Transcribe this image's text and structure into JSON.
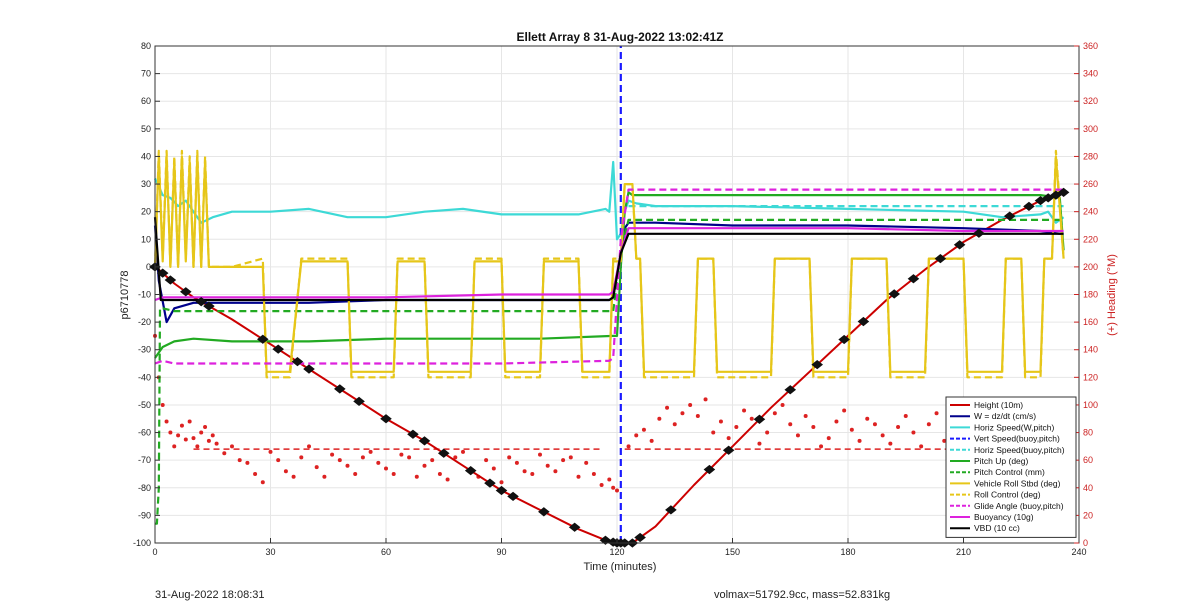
{
  "chart_data": {
    "type": "line",
    "title": "Ellett Array 8 31-Aug-2022 13:02:41Z",
    "xlabel": "Time (minutes)",
    "ylabel": "p6710778",
    "y2label": "(+) Heading (°M)",
    "xlim": [
      0,
      240
    ],
    "ylim": [
      -100,
      80
    ],
    "y2lim": [
      0,
      360
    ],
    "xticks": [
      0,
      30,
      60,
      90,
      120,
      150,
      180,
      210,
      240
    ],
    "yticks": [
      -100,
      -90,
      -80,
      -70,
      -60,
      -50,
      -40,
      -30,
      -20,
      -10,
      0,
      10,
      20,
      30,
      40,
      50,
      60,
      70,
      80
    ],
    "y2ticks": [
      0,
      20,
      40,
      60,
      80,
      100,
      120,
      140,
      160,
      180,
      200,
      220,
      240,
      260,
      280,
      300,
      320,
      340,
      360
    ],
    "grid": true,
    "legend_position": "bottom-right",
    "apogee_marker_x": 121,
    "series": [
      {
        "name": "Height (10m)",
        "color": "#cc0000",
        "style": "solid",
        "x": [
          0,
          1,
          5,
          10,
          20,
          30,
          40,
          50,
          60,
          70,
          80,
          90,
          100,
          110,
          117,
          120,
          122,
          124,
          130,
          140,
          150,
          160,
          170,
          180,
          190,
          200,
          210,
          220,
          230,
          236
        ],
        "y": [
          0,
          -1,
          -6,
          -11,
          -19,
          -28,
          -37,
          -46,
          -55,
          -63,
          -72,
          -81,
          -88,
          -95,
          -99,
          -100,
          -100,
          -100,
          -94,
          -79,
          -65,
          -51,
          -38,
          -25,
          -12,
          -1,
          9,
          17,
          24,
          27
        ]
      },
      {
        "name": "W = dz/dt (cm/s)",
        "color": "#00008b",
        "style": "solid",
        "x": [
          0,
          1,
          3,
          5,
          10,
          20,
          40,
          60,
          80,
          100,
          118,
          119,
          121,
          122,
          123,
          125,
          130,
          150,
          180,
          210,
          230,
          235,
          236
        ],
        "y": [
          15,
          -5,
          -20,
          -15,
          -13,
          -13,
          -13,
          -12,
          -12,
          -12,
          -12,
          -11,
          5,
          14,
          16,
          16,
          16,
          15,
          15,
          14,
          13,
          12,
          12
        ]
      },
      {
        "name": "Horiz Speed(W,pitch)",
        "color": "#3dd9d6",
        "style": "solid",
        "x": [
          0,
          2,
          4,
          6,
          8,
          10,
          12,
          15,
          20,
          30,
          40,
          50,
          60,
          70,
          80,
          90,
          100,
          110,
          117,
          118,
          119,
          120,
          121,
          122,
          123,
          125,
          130,
          150,
          180,
          210,
          220,
          230,
          232,
          234,
          236
        ],
        "y": [
          32,
          26,
          25,
          22,
          24,
          20,
          16,
          18,
          20,
          20,
          21,
          18,
          18,
          20,
          21,
          19,
          19,
          19,
          21,
          20,
          38,
          10,
          12,
          20,
          24,
          23,
          22,
          22,
          21,
          20,
          18,
          19,
          20,
          16,
          18
        ]
      },
      {
        "name": "Vert Speed(buoy,pitch)",
        "color": "#1a1aff",
        "style": "dashed",
        "x": [
          121,
          121
        ],
        "y": [
          -100,
          80
        ]
      },
      {
        "name": "Horiz Speed(buoy,pitch)",
        "color": "#3dd9d6",
        "style": "dashed",
        "x": [
          123,
          236
        ],
        "y": [
          22,
          22
        ]
      },
      {
        "name": "Pitch Up (deg)",
        "color": "#22aa22",
        "style": "solid",
        "x": [
          0,
          2,
          5,
          10,
          20,
          40,
          60,
          80,
          100,
          119,
          120,
          121,
          122,
          123,
          124,
          130,
          150,
          180,
          210,
          230,
          235,
          236
        ],
        "y": [
          -33,
          -29,
          -27,
          -26,
          -27,
          -27,
          -26,
          -26,
          -26,
          -25,
          -25,
          0,
          20,
          27,
          26,
          26,
          26,
          26,
          26,
          26,
          25,
          6
        ]
      },
      {
        "name": "Pitch Control (mm)",
        "color": "#22aa22",
        "style": "dashed",
        "x": [
          0,
          0.5,
          1,
          1.3,
          2,
          5,
          20,
          60,
          100,
          119,
          121,
          123,
          125,
          180,
          236
        ],
        "y": [
          -93,
          -93,
          -80,
          -15,
          -15,
          -16,
          -16,
          -16,
          -16,
          -16,
          5,
          17,
          17,
          17,
          17
        ]
      },
      {
        "name": "Vehicle Roll Stbd (deg)",
        "color": "#e6c619",
        "style": "solid",
        "x": [
          0,
          1,
          2,
          3,
          4,
          5,
          6,
          7,
          8,
          9,
          10,
          11,
          12,
          13,
          14,
          20,
          28,
          29,
          35,
          38,
          39,
          50,
          51,
          62,
          63,
          70,
          71,
          82,
          83,
          90,
          91,
          100,
          101,
          110,
          111,
          118,
          119,
          121,
          122,
          124,
          125,
          126,
          127,
          140,
          141,
          145,
          146,
          160,
          161,
          170,
          171,
          180,
          181,
          190,
          191,
          200,
          201,
          210,
          211,
          220,
          221,
          225,
          226,
          230,
          231,
          233,
          234,
          236
        ],
        "y": [
          0,
          40,
          2,
          40,
          0,
          38,
          0,
          40,
          2,
          38,
          0,
          40,
          0,
          38,
          0,
          0,
          0,
          -38,
          -38,
          2,
          2,
          2,
          -38,
          -38,
          2,
          2,
          -38,
          -38,
          2,
          2,
          -38,
          -38,
          2,
          2,
          -38,
          -38,
          2,
          2,
          30,
          30,
          3,
          3,
          -38,
          -38,
          3,
          3,
          -38,
          -38,
          3,
          3,
          -38,
          -38,
          3,
          3,
          -38,
          -38,
          3,
          3,
          -38,
          -38,
          3,
          3,
          -38,
          -38,
          3,
          3,
          40,
          3
        ]
      },
      {
        "name": "Roll Control (deg)",
        "color": "#e6c619",
        "style": "dashed",
        "x": [
          0,
          1,
          2,
          3,
          4,
          5,
          6,
          7,
          8,
          9,
          10,
          11,
          12,
          13,
          14,
          20,
          28,
          29,
          35,
          38,
          39,
          50,
          51,
          62,
          63,
          70,
          71,
          82,
          83,
          90,
          91,
          100,
          101,
          110,
          111,
          118,
          119,
          121,
          122,
          124,
          125,
          126,
          127,
          140,
          141,
          145,
          146,
          160,
          161,
          170,
          171,
          180,
          181,
          190,
          191,
          200,
          201,
          210,
          211,
          220,
          221,
          225,
          226,
          230,
          231,
          233,
          234,
          236
        ],
        "y": [
          0,
          42,
          3,
          42,
          0,
          40,
          0,
          42,
          3,
          40,
          0,
          42,
          0,
          40,
          0,
          0,
          3,
          -40,
          -40,
          3,
          3,
          3,
          -40,
          -40,
          3,
          3,
          -40,
          -40,
          3,
          3,
          -40,
          -40,
          3,
          3,
          -40,
          -40,
          3,
          3,
          30,
          30,
          3,
          3,
          -40,
          -40,
          3,
          3,
          -40,
          -40,
          3,
          3,
          -40,
          -40,
          3,
          3,
          -40,
          -40,
          3,
          3,
          -40,
          -40,
          3,
          3,
          -40,
          -40,
          3,
          3,
          42,
          3
        ]
      },
      {
        "name": "Glide Angle (buoy,pitch)",
        "color": "#dd22dd",
        "style": "dashed",
        "x": [
          0,
          2,
          5,
          10,
          30,
          60,
          90,
          118,
          119,
          121,
          123,
          125,
          150,
          180,
          210,
          236
        ],
        "y": [
          -35,
          -34,
          -35,
          -35,
          -35,
          -35,
          -35,
          -34,
          -33,
          10,
          28,
          28,
          28,
          28,
          28,
          28
        ]
      },
      {
        "name": "Buoyancy (10g)",
        "color": "#dd22dd",
        "style": "solid",
        "x": [
          0,
          2,
          5,
          10,
          30,
          60,
          90,
          118,
          119,
          121,
          123,
          125,
          150,
          180,
          210,
          236
        ],
        "y": [
          -12,
          -11,
          -11,
          -11,
          -11,
          -11,
          -10,
          -10,
          -9,
          5,
          14,
          14,
          14,
          14,
          13,
          13
        ]
      },
      {
        "name": "VBD (10 cc)",
        "color": "#000000",
        "style": "solid",
        "x": [
          0,
          1.5,
          2,
          5,
          10,
          30,
          60,
          90,
          118,
          119,
          121,
          123,
          124,
          150,
          180,
          210,
          236
        ],
        "y": [
          18,
          -12,
          -12,
          -12,
          -12,
          -12,
          -12,
          -12,
          -12,
          -11,
          5,
          12,
          12,
          12,
          12,
          12,
          12
        ]
      }
    ],
    "heading_series": {
      "name": "(+) Heading (°M)",
      "color": "#dd2222",
      "style": "dots",
      "axis": "right",
      "x": [
        0,
        1,
        2,
        3,
        4,
        5,
        6,
        7,
        8,
        9,
        10,
        11,
        12,
        13,
        14,
        15,
        16,
        18,
        20,
        22,
        24,
        26,
        28,
        30,
        32,
        34,
        36,
        38,
        40,
        42,
        44,
        46,
        48,
        50,
        52,
        54,
        56,
        58,
        60,
        62,
        64,
        66,
        68,
        70,
        72,
        74,
        76,
        78,
        80,
        82,
        84,
        86,
        88,
        90,
        92,
        94,
        96,
        98,
        100,
        102,
        104,
        106,
        108,
        110,
        112,
        114,
        116,
        118,
        119,
        120,
        123,
        125,
        127,
        129,
        131,
        133,
        135,
        137,
        139,
        141,
        143,
        145,
        147,
        149,
        151,
        153,
        155,
        157,
        159,
        161,
        163,
        165,
        167,
        169,
        171,
        173,
        175,
        177,
        179,
        181,
        183,
        185,
        187,
        189,
        191,
        193,
        195,
        197,
        199,
        201,
        203,
        205,
        207,
        209,
        211,
        213,
        215,
        217,
        219,
        221,
        223,
        225,
        227,
        229,
        231,
        233,
        234,
        235,
        236
      ],
      "y": [
        150,
        120,
        100,
        88,
        80,
        70,
        78,
        85,
        75,
        88,
        76,
        70,
        80,
        84,
        74,
        78,
        72,
        65,
        70,
        60,
        58,
        50,
        44,
        66,
        60,
        52,
        48,
        62,
        70,
        55,
        48,
        64,
        60,
        56,
        50,
        62,
        66,
        58,
        54,
        50,
        64,
        62,
        48,
        56,
        60,
        50,
        46,
        62,
        66,
        52,
        48,
        60,
        54,
        44,
        62,
        58,
        52,
        50,
        64,
        56,
        52,
        60,
        62,
        48,
        58,
        50,
        42,
        46,
        40,
        38,
        70,
        78,
        82,
        74,
        90,
        98,
        86,
        94,
        100,
        92,
        104,
        80,
        88,
        76,
        84,
        96,
        90,
        72,
        80,
        94,
        100,
        86,
        78,
        92,
        84,
        70,
        76,
        88,
        96,
        82,
        74,
        90,
        86,
        78,
        72,
        84,
        92,
        80,
        70,
        86,
        94,
        74,
        80,
        90,
        96,
        84,
        72,
        88,
        82,
        76,
        90,
        98,
        84,
        78,
        92,
        72,
        60,
        56,
        44
      ]
    },
    "heading_reference": {
      "color": "#dd2222",
      "style": "dashed",
      "segments": [
        {
          "x": [
            10,
            116
          ],
          "y": 68
        },
        {
          "x": [
            122,
            236
          ],
          "y": 68
        }
      ]
    },
    "marker_positions_x": [
      0,
      2,
      4,
      8,
      12,
      14,
      28,
      32,
      37,
      40,
      48,
      53,
      60,
      67,
      70,
      75,
      82,
      87,
      90,
      93,
      101,
      109,
      117,
      119,
      120,
      121,
      122,
      124,
      126,
      134,
      144,
      149,
      157,
      165,
      172,
      179,
      184,
      192,
      197,
      204,
      209,
      214,
      222,
      227,
      230,
      232,
      234,
      236
    ]
  },
  "legend": {
    "items": [
      "Height (10m)",
      "W = dz/dt (cm/s)",
      "Horiz Speed(W,pitch)",
      "Vert Speed(buoy,pitch)",
      "Horiz Speed(buoy,pitch)",
      "Pitch Up (deg)",
      "Pitch Control (mm)",
      "Vehicle Roll Stbd (deg)",
      "Roll Control (deg)",
      "Glide Angle (buoy,pitch)",
      "Buoyancy (10g)",
      "VBD (10 cc)"
    ]
  },
  "footer": {
    "left": "31-Aug-2022 18:08:31",
    "right": "volmax=51792.9cc, mass=52.831kg"
  }
}
